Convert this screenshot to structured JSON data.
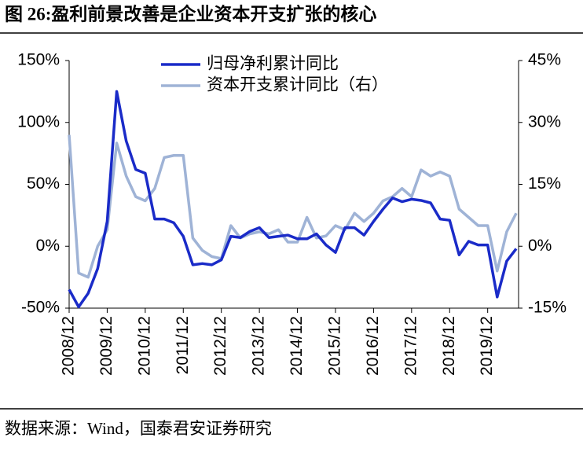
{
  "title": "图 26:盈利前景改善是企业资本开支扩张的核心",
  "source": "数据来源：Wind，国泰君安证券研究",
  "chart_data": {
    "type": "line",
    "categories": [
      "2008/12",
      null,
      null,
      null,
      "2009/12",
      null,
      null,
      null,
      "2010/12",
      null,
      null,
      null,
      "2011/12",
      null,
      null,
      null,
      "2012/12",
      null,
      null,
      null,
      "2013/12",
      null,
      null,
      null,
      "2014/12",
      null,
      null,
      null,
      "2015/12",
      null,
      null,
      null,
      "2016/12",
      null,
      null,
      null,
      "2017/12",
      null,
      null,
      null,
      "2018/12",
      null,
      null,
      null,
      "2019/12",
      null,
      null,
      null
    ],
    "series": [
      {
        "name": "归母净利累计同比",
        "color": "#1a2bc8",
        "values": [
          -35,
          -49,
          -38,
          -18,
          20,
          125,
          85,
          62,
          59,
          22,
          22,
          19,
          8,
          -15,
          -14,
          -15,
          -11,
          8,
          7,
          12,
          15,
          7,
          8,
          9,
          6,
          6,
          10,
          1,
          -5,
          15,
          15,
          9,
          20,
          30,
          39,
          36,
          38,
          37,
          35,
          22,
          21,
          -7,
          4,
          1,
          1,
          -41,
          -12,
          -2
        ]
      },
      {
        "name": "资本开支累计同比（右）",
        "color": "#9fb3d6",
        "axis": "y2",
        "values": [
          27,
          -6.5,
          -7.5,
          0,
          4,
          25,
          17,
          12,
          11,
          14,
          21.5,
          22,
          22,
          2,
          -1,
          -2.5,
          -3,
          5,
          2,
          3,
          3.5,
          3,
          4,
          1,
          1,
          7,
          2,
          2.5,
          5,
          4,
          8,
          6,
          8,
          11,
          12,
          14,
          12,
          18.5,
          17,
          18,
          17,
          9,
          7,
          5,
          5,
          -6,
          3.5,
          8
        ]
      }
    ],
    "ylim": [
      -50,
      150
    ],
    "yticks": [
      {
        "value": -50,
        "label": "-50%"
      },
      {
        "value": 0,
        "label": "0%"
      },
      {
        "value": 50,
        "label": "50%"
      },
      {
        "value": 100,
        "label": "100%"
      },
      {
        "value": 150,
        "label": "150%"
      }
    ],
    "y2lim": [
      -15,
      45
    ],
    "y2ticks": [
      {
        "value": -15,
        "label": "-15%"
      },
      {
        "value": 0,
        "label": "0%"
      },
      {
        "value": 15,
        "label": "15%"
      },
      {
        "value": 30,
        "label": "30%"
      },
      {
        "value": 45,
        "label": "45%"
      }
    ]
  }
}
